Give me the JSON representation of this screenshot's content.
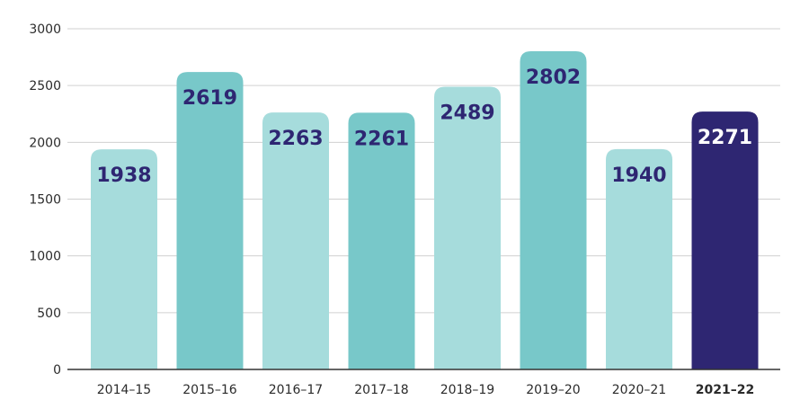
{
  "chart_data": {
    "type": "bar",
    "title": "",
    "xlabel": "",
    "ylabel": "",
    "ylim": [
      0,
      3000
    ],
    "yticks": [
      0,
      500,
      1000,
      1500,
      2000,
      2500,
      3000
    ],
    "grid": true,
    "legend": "none",
    "categories": [
      "2014–15",
      "2015–16",
      "2016–17",
      "2017–18",
      "2018–19",
      "2019–20",
      "2020–21",
      "2021–22"
    ],
    "values": [
      1938,
      2619,
      2263,
      2261,
      2489,
      2802,
      1940,
      2271
    ],
    "data_labels": [
      "1938",
      "2619",
      "2263",
      "2261",
      "2489",
      "2802",
      "1940",
      "2271"
    ],
    "highlight_index": 7
  },
  "colors": {
    "bar_light": "#a6dcdc",
    "bar_dark": "#78c8c9",
    "bar_highlight": "#2e2672",
    "label_text": "#2e2672",
    "label_text_highlight": "#ffffff",
    "grid": "#d0d0d0",
    "axis": "#333333"
  }
}
